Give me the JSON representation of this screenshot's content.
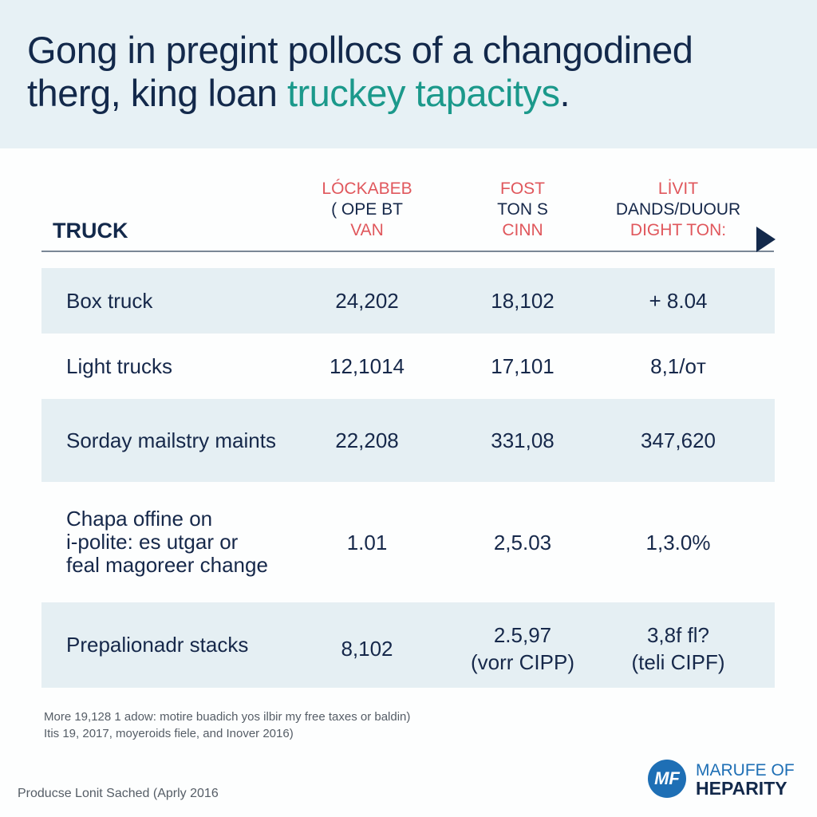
{
  "title": {
    "line1": "Gong in pregint pollocs of a changodined",
    "line2_plain": "therg, king loan ",
    "line2_accent": "truckey tapacitys",
    "line2_end": "."
  },
  "table": {
    "first_header": "TRUCK",
    "columns": [
      {
        "line1": "LÓCKABEB",
        "line2": "( OPE BT",
        "line3": "VAN"
      },
      {
        "line1": "FOST",
        "line2": "TON S",
        "line3": "CINN"
      },
      {
        "line1": "LİVIT",
        "line2": "DANDS/DUOUR",
        "line3": "DIGHT TON:"
      }
    ],
    "rows": [
      {
        "label": [
          "Box truck"
        ],
        "values": [
          [
            "24,202"
          ],
          [
            "18,102"
          ],
          [
            "+ 8.04"
          ]
        ]
      },
      {
        "label": [
          "Light trucks"
        ],
        "values": [
          [
            "12,1014"
          ],
          [
            "17,101"
          ],
          [
            "8,1/oт"
          ]
        ]
      },
      {
        "label": [
          "Sorday mailstry maints"
        ],
        "values": [
          [
            "22,208"
          ],
          [
            "331,08"
          ],
          [
            "347,620"
          ]
        ]
      },
      {
        "label": [
          "Chapa offine on",
          "i-polite: es utgar or",
          "feal magoreer change"
        ],
        "values": [
          [
            "1.01"
          ],
          [
            "2,5.03"
          ],
          [
            "1,3.0%"
          ]
        ]
      },
      {
        "label": [
          "Prepalionadr stacks"
        ],
        "values": [
          [
            "8,102"
          ],
          [
            "2.5,97",
            "(vorr CIPP)"
          ],
          [
            "3,8f fl?",
            "(teli  CIPF)"
          ]
        ]
      }
    ]
  },
  "notes": [
    "More 19,128 1 adow: motire buadich yos ilbir my free taxes or baldin)",
    "Itis 19, 2017, moyeroids fiele, and Inover 2016)"
  ],
  "source": "Producse Lonit Sached (Aprly 2016",
  "logo": {
    "mark": "MF",
    "line1": "MARUFE OF",
    "line2": "HEPARITY"
  }
}
